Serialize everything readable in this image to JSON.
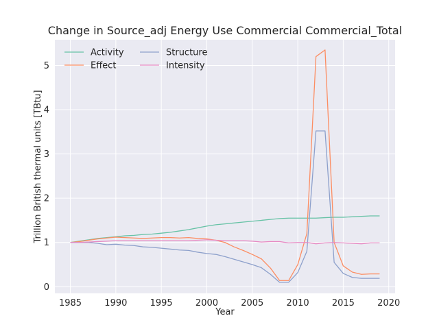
{
  "chart_data": {
    "type": "line",
    "title": "Change in Source_adj Energy Use Commercial Commercial_Total",
    "xlabel": "Year",
    "ylabel": "Trillion British thermal units [TBtu]",
    "xlim": [
      1983.3,
      2020.7
    ],
    "ylim": [
      -0.15,
      5.58
    ],
    "xticks": [
      1985,
      1990,
      1995,
      2000,
      2005,
      2010,
      2015,
      2020
    ],
    "yticks": [
      0,
      1,
      2,
      3,
      4,
      5
    ],
    "grid": true,
    "legend_position": "upper-left",
    "background": "#eaeaf2",
    "x": [
      1985,
      1986,
      1987,
      1988,
      1989,
      1990,
      1991,
      1992,
      1993,
      1994,
      1995,
      1996,
      1997,
      1998,
      1999,
      2000,
      2001,
      2002,
      2003,
      2004,
      2005,
      2006,
      2007,
      2008,
      2009,
      2010,
      2011,
      2012,
      2013,
      2014,
      2015,
      2016,
      2017,
      2018,
      2019
    ],
    "series": [
      {
        "name": "Activity",
        "color": "#66c2a5",
        "values": [
          1.0,
          1.03,
          1.06,
          1.09,
          1.11,
          1.13,
          1.15,
          1.16,
          1.18,
          1.19,
          1.21,
          1.23,
          1.26,
          1.29,
          1.33,
          1.37,
          1.4,
          1.42,
          1.44,
          1.46,
          1.48,
          1.5,
          1.52,
          1.54,
          1.55,
          1.55,
          1.55,
          1.55,
          1.56,
          1.57,
          1.57,
          1.58,
          1.59,
          1.6,
          1.6
        ]
      },
      {
        "name": "Effect",
        "color": "#fc8d62",
        "values": [
          1.0,
          1.02,
          1.05,
          1.08,
          1.1,
          1.12,
          1.11,
          1.1,
          1.09,
          1.1,
          1.11,
          1.11,
          1.1,
          1.11,
          1.09,
          1.08,
          1.05,
          1.0,
          0.9,
          0.82,
          0.73,
          0.63,
          0.42,
          0.14,
          0.14,
          0.5,
          1.2,
          5.2,
          5.35,
          1.0,
          0.47,
          0.33,
          0.28,
          0.29,
          0.29
        ]
      },
      {
        "name": "Structure",
        "color": "#8da0cb",
        "values": [
          1.0,
          1.0,
          1.0,
          0.98,
          0.95,
          0.96,
          0.94,
          0.93,
          0.9,
          0.89,
          0.87,
          0.85,
          0.83,
          0.82,
          0.78,
          0.75,
          0.73,
          0.68,
          0.62,
          0.56,
          0.5,
          0.43,
          0.28,
          0.1,
          0.1,
          0.32,
          0.8,
          3.52,
          3.52,
          0.55,
          0.3,
          0.21,
          0.19,
          0.19,
          0.19
        ]
      },
      {
        "name": "Intensity",
        "color": "#e78ac3",
        "values": [
          1.0,
          1.0,
          1.01,
          1.02,
          1.03,
          1.04,
          1.04,
          1.04,
          1.04,
          1.04,
          1.04,
          1.04,
          1.04,
          1.04,
          1.05,
          1.06,
          1.05,
          1.04,
          1.04,
          1.04,
          1.03,
          1.01,
          1.02,
          1.02,
          0.99,
          1.0,
          1.0,
          0.97,
          0.99,
          1.0,
          0.99,
          0.98,
          0.97,
          0.99,
          0.99
        ]
      }
    ]
  }
}
